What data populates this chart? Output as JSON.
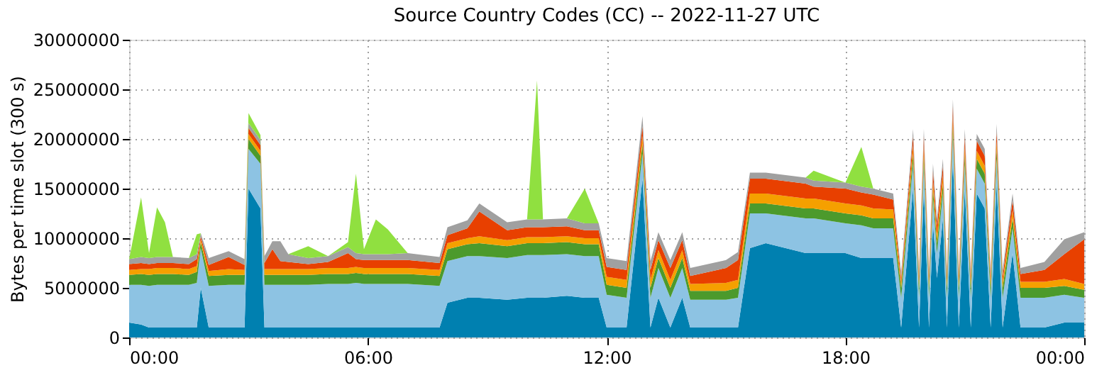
{
  "chart_data": {
    "type": "area",
    "stacked": true,
    "title": "Source Country Codes (CC) -- 2022-11-27 UTC",
    "ylabel": "Bytes per time slot (300 s)",
    "x": [
      0.0,
      0.3,
      0.5,
      0.7,
      0.9,
      1.1,
      1.5,
      1.7,
      1.8,
      2.0,
      2.5,
      2.9,
      3.0,
      3.3,
      3.4,
      3.6,
      3.8,
      4.0,
      4.5,
      5.0,
      5.5,
      5.7,
      5.9,
      6.2,
      6.5,
      7.0,
      7.8,
      8.0,
      8.5,
      8.8,
      9.5,
      10.0,
      10.25,
      10.4,
      11.0,
      11.45,
      11.8,
      12.0,
      12.5,
      12.9,
      13.1,
      13.3,
      13.6,
      13.9,
      14.1,
      15.0,
      15.3,
      15.6,
      16.0,
      17.0,
      17.2,
      18.0,
      18.4,
      18.7,
      19.2,
      19.4,
      19.7,
      19.85,
      19.97,
      20.1,
      20.2,
      20.3,
      20.45,
      20.55,
      20.7,
      20.85,
      21.0,
      21.15,
      21.3,
      21.5,
      21.65,
      21.8,
      21.95,
      22.2,
      22.4,
      23.0,
      23.5,
      24.0
    ],
    "series": [
      {
        "color": "#0080b0",
        "values": [
          1500000.0,
          1300000.0,
          1000000.0,
          1000000.0,
          1000000.0,
          1000000.0,
          1000000.0,
          1000000.0,
          5000000.0,
          1000000.0,
          1000000.0,
          1000000.0,
          15000000.0,
          13000000.0,
          1000000.0,
          1000000.0,
          1000000.0,
          1000000.0,
          1000000.0,
          1000000.0,
          1000000.0,
          1000000.0,
          1000000.0,
          1000000.0,
          1000000.0,
          1000000.0,
          1000000.0,
          3500000.0,
          4000000.0,
          4000000.0,
          3800000.0,
          4000000.0,
          4000000.0,
          4000000.0,
          4200000.0,
          4000000.0,
          4000000.0,
          1000000.0,
          1000000.0,
          16000000.0,
          1000000.0,
          4000000.0,
          1000000.0,
          4000000.0,
          1000000.0,
          1000000.0,
          1000000.0,
          9000000.0,
          9500000.0,
          8500000.0,
          8500000.0,
          8500000.0,
          8000000.0,
          8000000.0,
          8000000.0,
          1000000.0,
          15000000.0,
          1000000.0,
          15000000.0,
          1000000.0,
          11500000.0,
          6000000.0,
          12000000.0,
          1000000.0,
          18000000.0,
          1000000.0,
          15000000.0,
          1000000.0,
          14500000.0,
          13000000.0,
          1000000.0,
          15500000.0,
          1000000.0,
          8500000.0,
          1000000.0,
          1000000.0,
          1500000.0,
          1500000.0
        ]
      },
      {
        "color": "#8dc3e3",
        "values": [
          3800000.0,
          4000000.0,
          4200000.0,
          4300000.0,
          4300000.0,
          4300000.0,
          4300000.0,
          4500000.0,
          4000000.0,
          4200000.0,
          4300000.0,
          4300000.0,
          4000000.0,
          4500000.0,
          4300000.0,
          4300000.0,
          4300000.0,
          4300000.0,
          4300000.0,
          4400000.0,
          4400000.0,
          4500000.0,
          4400000.0,
          4400000.0,
          4400000.0,
          4400000.0,
          4200000.0,
          4200000.0,
          4200000.0,
          4200000.0,
          4200000.0,
          4300000.0,
          4300000.0,
          4300000.0,
          4200000.0,
          4200000.0,
          4200000.0,
          3300000.0,
          3000000.0,
          2500000.0,
          3000000.0,
          3000000.0,
          3000000.0,
          3000000.0,
          2800000.0,
          2800000.0,
          3000000.0,
          3500000.0,
          3000000.0,
          3500000.0,
          3500000.0,
          3000000.0,
          3300000.0,
          3000000.0,
          3000000.0,
          3000000.0,
          2500000.0,
          3000000.0,
          2500000.0,
          3000000.0,
          2500000.0,
          2500000.0,
          2500000.0,
          3000000.0,
          2500000.0,
          3000000.0,
          2500000.0,
          3000000.0,
          2500000.0,
          2500000.0,
          3000000.0,
          2500000.0,
          3000000.0,
          2500000.0,
          3000000.0,
          3000000.0,
          2800000.0,
          2500000.0
        ]
      },
      {
        "color": "#4c9a2c",
        "values": [
          1000000.0,
          1100000.0,
          1100000.0,
          1100000.0,
          1100000.0,
          1100000.0,
          1000000.0,
          1100000.0,
          600000.0,
          1000000.0,
          1000000.0,
          1000000.0,
          1000000.0,
          800000.0,
          1000000.0,
          1000000.0,
          1000000.0,
          1000000.0,
          1000000.0,
          1000000.0,
          1000000.0,
          1000000.0,
          1000000.0,
          1000000.0,
          1000000.0,
          1000000.0,
          1000000.0,
          1200000.0,
          1200000.0,
          1300000.0,
          1200000.0,
          1200000.0,
          1200000.0,
          1200000.0,
          1200000.0,
          1200000.0,
          1200000.0,
          1000000.0,
          1000000.0,
          1000000.0,
          1000000.0,
          1000000.0,
          1000000.0,
          1000000.0,
          900000.0,
          900000.0,
          1000000.0,
          1000000.0,
          1000000.0,
          1000000.0,
          1000000.0,
          1000000.0,
          1000000.0,
          1000000.0,
          1000000.0,
          1000000.0,
          1000000.0,
          1000000.0,
          1000000.0,
          1000000.0,
          1000000.0,
          1000000.0,
          1000000.0,
          1000000.0,
          1000000.0,
          1000000.0,
          1000000.0,
          1000000.0,
          1000000.0,
          1000000.0,
          1000000.0,
          1000000.0,
          1000000.0,
          1000000.0,
          1000000.0,
          1000000.0,
          900000.0,
          800000.0
        ]
      },
      {
        "color": "#f5a000",
        "values": [
          500000.0,
          500000.0,
          600000.0,
          600000.0,
          600000.0,
          600000.0,
          600000.0,
          600000.0,
          300000.0,
          500000.0,
          600000.0,
          500000.0,
          500000.0,
          500000.0,
          600000.0,
          600000.0,
          600000.0,
          600000.0,
          600000.0,
          600000.0,
          600000.0,
          600000.0,
          600000.0,
          600000.0,
          600000.0,
          600000.0,
          600000.0,
          600000.0,
          600000.0,
          700000.0,
          600000.0,
          600000.0,
          600000.0,
          600000.0,
          600000.0,
          600000.0,
          600000.0,
          800000.0,
          800000.0,
          800000.0,
          800000.0,
          800000.0,
          800000.0,
          800000.0,
          700000.0,
          800000.0,
          800000.0,
          1000000.0,
          1000000.0,
          1000000.0,
          1000000.0,
          1000000.0,
          1000000.0,
          1000000.0,
          900000.0,
          500000.0,
          800000.0,
          600000.0,
          800000.0,
          600000.0,
          800000.0,
          800000.0,
          800000.0,
          600000.0,
          800000.0,
          600000.0,
          800000.0,
          600000.0,
          800000.0,
          800000.0,
          600000.0,
          800000.0,
          600000.0,
          800000.0,
          600000.0,
          600000.0,
          700000.0,
          600000.0
        ]
      },
      {
        "color": "#e84000",
        "values": [
          600000.0,
          600000.0,
          500000.0,
          500000.0,
          500000.0,
          500000.0,
          500000.0,
          700000.0,
          300000.0,
          600000.0,
          1200000.0,
          500000.0,
          600000.0,
          600000.0,
          600000.0,
          2000000.0,
          800000.0,
          700000.0,
          500000.0,
          600000.0,
          1500000.0,
          800000.0,
          800000.0,
          800000.0,
          800000.0,
          800000.0,
          700000.0,
          800000.0,
          1000000.0,
          2500000.0,
          1000000.0,
          1000000.0,
          1000000.0,
          1000000.0,
          1000000.0,
          800000.0,
          800000.0,
          1000000.0,
          1000000.0,
          1000000.0,
          1000000.0,
          1000000.0,
          1200000.0,
          1000000.0,
          800000.0,
          1500000.0,
          2000000.0,
          1500000.0,
          1500000.0,
          1500000.0,
          1200000.0,
          1500000.0,
          1300000.0,
          1400000.0,
          1000000.0,
          500000.0,
          1000000.0,
          600000.0,
          1000000.0,
          600000.0,
          1000000.0,
          1000000.0,
          1000000.0,
          600000.0,
          1000000.0,
          600000.0,
          1000000.0,
          600000.0,
          1000000.0,
          1000000.0,
          600000.0,
          1000000.0,
          600000.0,
          1000000.0,
          800000.0,
          1200000.0,
          2500000.0,
          4500000.0
        ]
      },
      {
        "color": "#a0a0a0",
        "values": [
          500000.0,
          600000.0,
          600000.0,
          600000.0,
          600000.0,
          600000.0,
          600000.0,
          500000.0,
          300000.0,
          700000.0,
          600000.0,
          600000.0,
          500000.0,
          500000.0,
          700000.0,
          800000.0,
          2000000.0,
          800000.0,
          600000.0,
          600000.0,
          600000.0,
          600000.0,
          600000.0,
          600000.0,
          600000.0,
          700000.0,
          600000.0,
          800000.0,
          800000.0,
          800000.0,
          800000.0,
          800000.0,
          800000.0,
          800000.0,
          800000.0,
          700000.0,
          700000.0,
          900000.0,
          900000.0,
          1000000.0,
          900000.0,
          800000.0,
          800000.0,
          800000.0,
          800000.0,
          800000.0,
          800000.0,
          600000.0,
          600000.0,
          600000.0,
          600000.0,
          600000.0,
          600000.0,
          600000.0,
          600000.0,
          500000.0,
          700000.0,
          500000.0,
          700000.0,
          600000.0,
          700000.0,
          700000.0,
          700000.0,
          600000.0,
          700000.0,
          600000.0,
          700000.0,
          600000.0,
          700000.0,
          700000.0,
          600000.0,
          700000.0,
          600000.0,
          700000.0,
          600000.0,
          800000.0,
          1500000.0,
          700000.0
        ]
      },
      {
        "color": "#90e040",
        "values": [
          0,
          6000000.0,
          500000.0,
          5000000.0,
          3500000.0,
          0,
          0,
          2000000.0,
          0,
          0,
          0,
          0,
          1000000.0,
          500000.0,
          0,
          0,
          0,
          0,
          1200000.0,
          0,
          500000.0,
          8000000.0,
          500000.0,
          3500000.0,
          2500000.0,
          0,
          0,
          0,
          0,
          0,
          0,
          0,
          14000000.0,
          0,
          0,
          3500000.0,
          0,
          0,
          0,
          0,
          0,
          0,
          0,
          0,
          0,
          0,
          0,
          0,
          0,
          0,
          1000000.0,
          0,
          4000000.0,
          0,
          0,
          0,
          0,
          0,
          0,
          0,
          0,
          0,
          0,
          0,
          0,
          0,
          0,
          0,
          0,
          0,
          0,
          0,
          0,
          0,
          0,
          0,
          0,
          0
        ]
      }
    ],
    "xlim": [
      0,
      24
    ],
    "xticks": [
      {
        "value": 0,
        "label": "00:00"
      },
      {
        "value": 6,
        "label": "06:00"
      },
      {
        "value": 12,
        "label": "12:00"
      },
      {
        "value": 18,
        "label": "18:00"
      },
      {
        "value": 24,
        "label": "00:00"
      }
    ],
    "ylim": [
      0,
      30000000
    ],
    "yticks": [
      0,
      5000000,
      10000000,
      15000000,
      20000000,
      25000000,
      30000000
    ],
    "grid": true
  }
}
